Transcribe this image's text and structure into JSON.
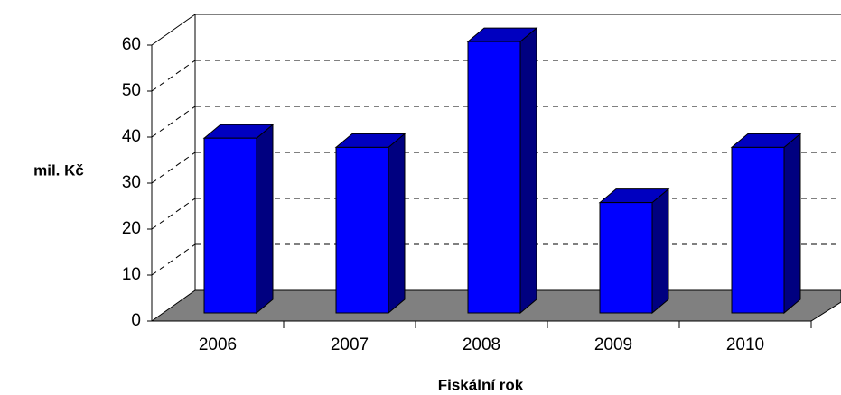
{
  "chart_data": {
    "type": "bar",
    "categories": [
      "2006",
      "2007",
      "2008",
      "2009",
      "2010"
    ],
    "values": [
      38,
      36,
      59,
      24,
      36
    ],
    "color": "#0000ff",
    "ylim": [
      0,
      60
    ],
    "yticks": [
      0,
      10,
      20,
      30,
      40,
      50,
      60
    ],
    "grid": true,
    "xlabel": "Fiskální rok",
    "ylabel": "mil. Kč"
  }
}
